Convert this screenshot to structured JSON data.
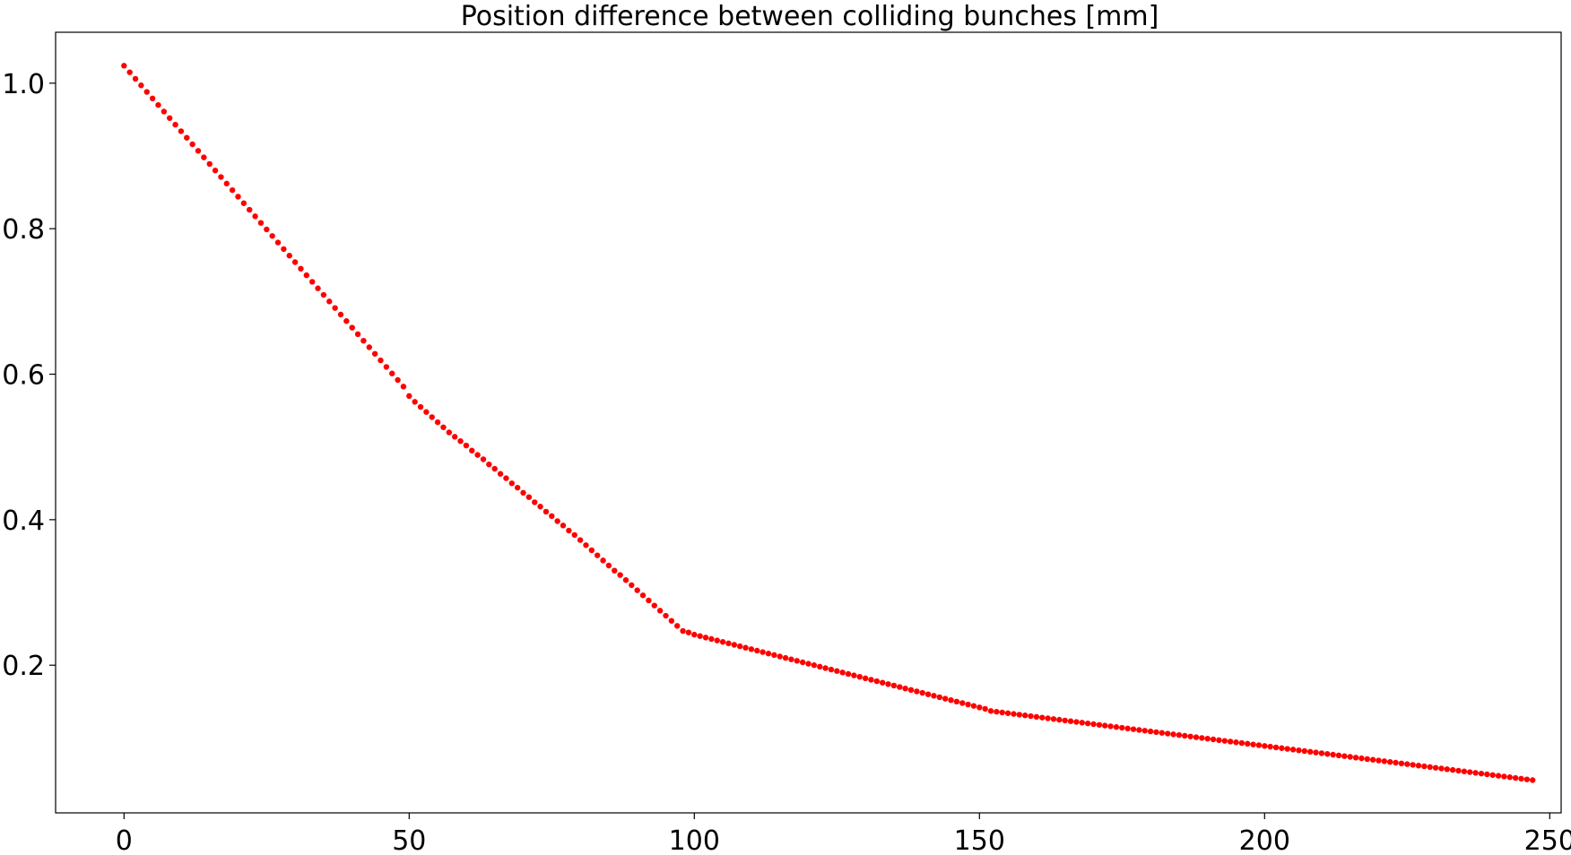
{
  "chart_data": {
    "type": "scatter",
    "title": "Position difference between colliding bunches [mm]",
    "xlabel": "",
    "ylabel": "",
    "xlim": [
      -12,
      252
    ],
    "ylim": [
      -0.003,
      1.07
    ],
    "xticks": [
      0,
      50,
      100,
      150,
      200,
      250
    ],
    "xtick_labels": [
      "0",
      "50",
      "100",
      "150",
      "200",
      "250"
    ],
    "yticks": [
      0.2,
      0.4,
      0.6,
      0.8,
      1.0
    ],
    "ytick_labels": [
      "0.2",
      "0.4",
      "0.6",
      "0.8",
      "1.0"
    ],
    "grid": false,
    "marker_color": "#ff0000",
    "series": [
      {
        "x_start": 0,
        "x_step": 1,
        "y": [
          1.024,
          1.015,
          1.006,
          0.997,
          0.988,
          0.979,
          0.97,
          0.961,
          0.952,
          0.943,
          0.934,
          0.925,
          0.916,
          0.907,
          0.898,
          0.889,
          0.88,
          0.871,
          0.862,
          0.853,
          0.844,
          0.835,
          0.826,
          0.817,
          0.808,
          0.799,
          0.79,
          0.781,
          0.772,
          0.763,
          0.754,
          0.745,
          0.736,
          0.727,
          0.718,
          0.709,
          0.7,
          0.691,
          0.682,
          0.673,
          0.664,
          0.655,
          0.646,
          0.637,
          0.628,
          0.619,
          0.61,
          0.601,
          0.592,
          0.583,
          0.57,
          0.562,
          0.555,
          0.548,
          0.541,
          0.534,
          0.527,
          0.52,
          0.514,
          0.508,
          0.502,
          0.495,
          0.489,
          0.483,
          0.476,
          0.47,
          0.463,
          0.457,
          0.45,
          0.444,
          0.437,
          0.431,
          0.424,
          0.418,
          0.411,
          0.405,
          0.398,
          0.392,
          0.385,
          0.379,
          0.372,
          0.365,
          0.358,
          0.351,
          0.344,
          0.337,
          0.33,
          0.324,
          0.317,
          0.31,
          0.303,
          0.296,
          0.289,
          0.282,
          0.275,
          0.268,
          0.261,
          0.254,
          0.247,
          0.245,
          0.242,
          0.24,
          0.238,
          0.236,
          0.234,
          0.232,
          0.23,
          0.228,
          0.226,
          0.224,
          0.222,
          0.22,
          0.218,
          0.216,
          0.214,
          0.212,
          0.21,
          0.208,
          0.206,
          0.204,
          0.202,
          0.2,
          0.198,
          0.196,
          0.194,
          0.192,
          0.19,
          0.188,
          0.186,
          0.184,
          0.182,
          0.18,
          0.178,
          0.176,
          0.174,
          0.172,
          0.17,
          0.168,
          0.166,
          0.164,
          0.162,
          0.16,
          0.158,
          0.156,
          0.154,
          0.152,
          0.15,
          0.148,
          0.146,
          0.144,
          0.142,
          0.14,
          0.137,
          0.136,
          0.135,
          0.134,
          0.133,
          0.132,
          0.131,
          0.13,
          0.129,
          0.128,
          0.127,
          0.126,
          0.125,
          0.124,
          0.123,
          0.122,
          0.121,
          0.12,
          0.119,
          0.118,
          0.117,
          0.116,
          0.115,
          0.114,
          0.113,
          0.112,
          0.111,
          0.11,
          0.109,
          0.108,
          0.107,
          0.106,
          0.105,
          0.104,
          0.103,
          0.102,
          0.101,
          0.1,
          0.099,
          0.098,
          0.097,
          0.096,
          0.095,
          0.094,
          0.093,
          0.092,
          0.091,
          0.09,
          0.089,
          0.088,
          0.087,
          0.086,
          0.085,
          0.084,
          0.083,
          0.082,
          0.081,
          0.08,
          0.079,
          0.078,
          0.077,
          0.076,
          0.075,
          0.074,
          0.073,
          0.072,
          0.071,
          0.07,
          0.069,
          0.068,
          0.067,
          0.066,
          0.065,
          0.064,
          0.063,
          0.062,
          0.061,
          0.06,
          0.059,
          0.058,
          0.057,
          0.056,
          0.055,
          0.054,
          0.053,
          0.052,
          0.051,
          0.05,
          0.049,
          0.048,
          0.047,
          0.046,
          0.045,
          0.044,
          0.043,
          0.042
        ]
      }
    ]
  }
}
